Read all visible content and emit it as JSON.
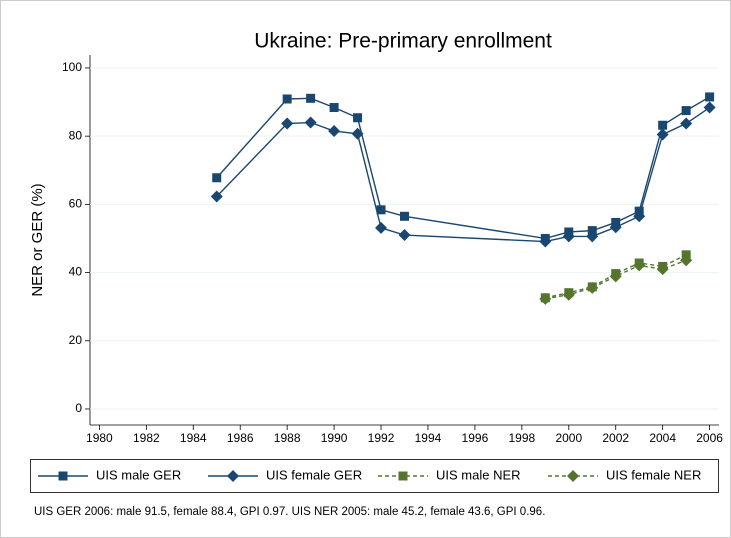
{
  "chart_data": {
    "type": "line",
    "title": "Ukraine: Pre-primary enrollment",
    "y_label": "NER or GER (%)",
    "note": "UIS GER 2006: male 91.5, female 88.4, GPI 0.97. UIS NER 2005: male 45.2, female 43.6, GPI 0.96.",
    "xlim": [
      1979.6,
      2006.4
    ],
    "xticks": [
      1980,
      1982,
      1984,
      1986,
      1988,
      1990,
      1992,
      1994,
      1996,
      1998,
      2000,
      2002,
      2004,
      2006
    ],
    "ylim": [
      -4.7,
      103.8
    ],
    "yticks": [
      0,
      20,
      40,
      60,
      80,
      100
    ],
    "series": [
      {
        "name": "UIS male GER",
        "color": "#1a476f",
        "marker": "square",
        "dash": false,
        "x": [
          1985,
          1988,
          1989,
          1990,
          1991,
          1992,
          1993,
          1999,
          2000,
          2001,
          2002,
          2003,
          2004,
          2005,
          2006
        ],
        "values": [
          67.8,
          90.9,
          91.1,
          88.4,
          85.4,
          58.4,
          56.5,
          50.0,
          51.9,
          52.3,
          54.7,
          58.0,
          83.2,
          87.5,
          91.5
        ]
      },
      {
        "name": "UIS female GER",
        "color": "#1a476f",
        "marker": "diamond",
        "dash": false,
        "x": [
          1985,
          1988,
          1989,
          1990,
          1991,
          1992,
          1993,
          1999,
          2000,
          2001,
          2002,
          2003,
          2004,
          2005,
          2006
        ],
        "values": [
          62.3,
          83.7,
          84.0,
          81.5,
          80.7,
          53.1,
          51.0,
          49.1,
          50.6,
          50.6,
          53.3,
          56.5,
          80.5,
          83.7,
          88.4
        ]
      },
      {
        "name": "UIS male NER",
        "color": "#55752f",
        "marker": "square",
        "dash": true,
        "x": [
          1999,
          2000,
          2001,
          2002,
          2003,
          2004,
          2005
        ],
        "values": [
          32.6,
          34.1,
          35.8,
          39.7,
          42.8,
          41.8,
          45.2
        ]
      },
      {
        "name": "UIS female NER",
        "color": "#55752f",
        "marker": "diamond",
        "dash": true,
        "x": [
          1999,
          2000,
          2001,
          2002,
          2003,
          2004,
          2005
        ],
        "values": [
          32.3,
          33.5,
          35.5,
          38.9,
          42.1,
          41.0,
          43.6
        ]
      }
    ]
  }
}
